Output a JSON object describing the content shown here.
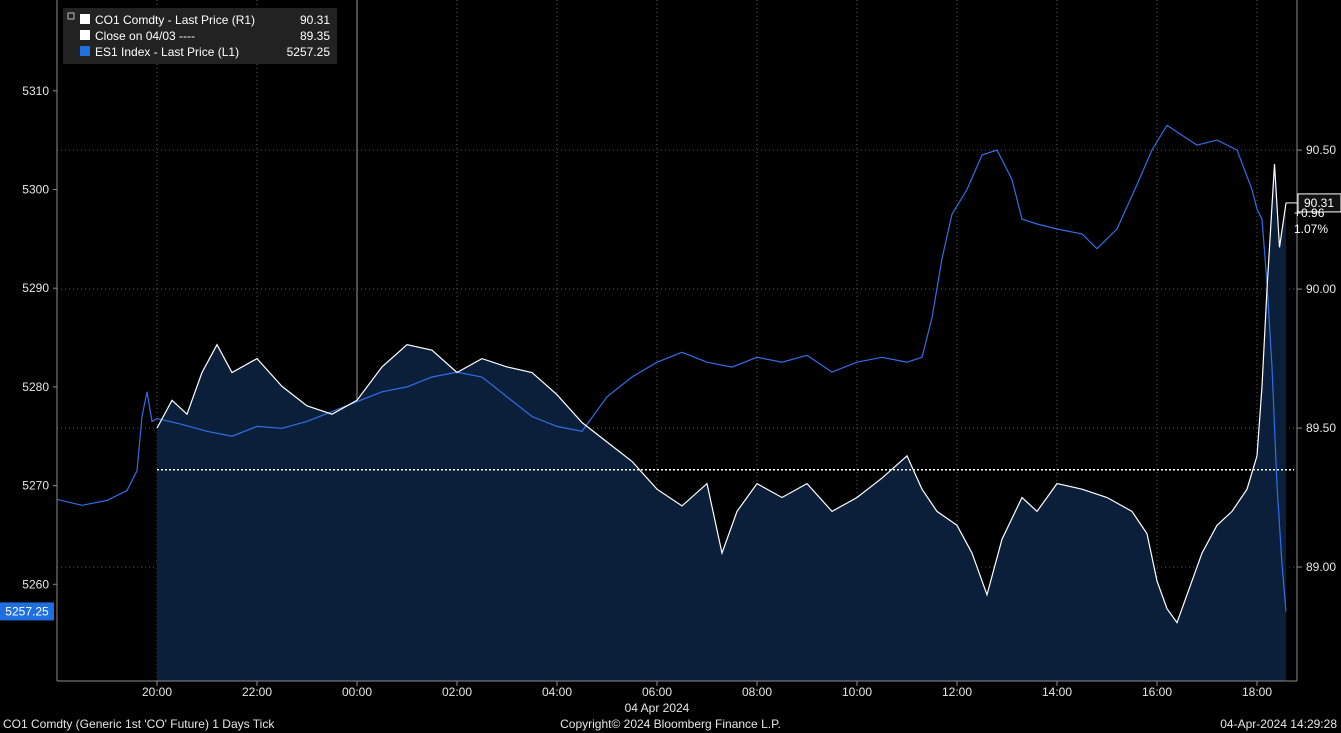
{
  "colors": {
    "background": "#000000",
    "area_fill": "#0b1f3a",
    "brent_line": "#ffffff",
    "es_line": "#2f6ee8",
    "es_badge": "#1f6fe0",
    "close_line": "#ffffff",
    "grid": "#5a5a5a",
    "axis": "#8c8c8c"
  },
  "legend": [
    {
      "icon": "white-square-icon",
      "label": "CO1 Comdty - Last Price (R1)",
      "value": "90.31",
      "color": "#ffffff"
    },
    {
      "icon": "white-square-icon",
      "label": "Close on 04/03 ----",
      "value": "89.35",
      "color": "#ffffff"
    },
    {
      "icon": "blue-square-icon",
      "label": "ES1 Index - Last Price (L1)",
      "value": "5257.25",
      "color": "#1f6fe0"
    }
  ],
  "annotation": {
    "change": "+0.96",
    "pct": "1.07%"
  },
  "right_badge": "90.31",
  "left_badge": "5257.25",
  "footer": {
    "left": "CO1 Comdty (Generic 1st 'CO' Future) 1 Days  Tick",
    "center": "Copyright© 2024 Bloomberg Finance L.P.",
    "right": "04-Apr-2024 14:29:28"
  },
  "chart_data": {
    "type": "line",
    "date_label": "04 Apr 2024",
    "grid": true,
    "legend_position": "top-left",
    "x_ticks": [
      "20:00",
      "22:00",
      "00:00",
      "02:00",
      "04:00",
      "06:00",
      "08:00",
      "10:00",
      "12:00",
      "14:00",
      "16:00",
      "18:00"
    ],
    "x_unit": "hours since 20:00 (03 Apr)",
    "x_range": [
      -2.0,
      22.8
    ],
    "y_left": {
      "ticks": [
        "5310",
        "5300",
        "5290",
        "5280",
        "5270",
        "5260"
      ],
      "range": [
        5250.2,
        5319.2
      ]
    },
    "y_right": {
      "ticks": [
        "90.50",
        "90.00",
        "89.50",
        "89.00"
      ],
      "range": [
        88.59,
        91.04
      ]
    },
    "close_ref": {
      "name": "Close on 04/03",
      "value": 89.35,
      "axis": "right"
    },
    "series": [
      {
        "name": "ES1 Index - Last Price (L1)",
        "axis": "left",
        "points": [
          [
            -2.0,
            5268.6
          ],
          [
            -1.5,
            5268.0
          ],
          [
            -1.0,
            5268.5
          ],
          [
            -0.6,
            5269.5
          ],
          [
            -0.4,
            5271.5
          ],
          [
            -0.3,
            5277.0
          ],
          [
            -0.2,
            5279.5
          ],
          [
            -0.1,
            5276.5
          ],
          [
            0.0,
            5276.8
          ],
          [
            0.5,
            5276.2
          ],
          [
            1.0,
            5275.5
          ],
          [
            1.5,
            5275.0
          ],
          [
            2.0,
            5276.0
          ],
          [
            2.5,
            5275.8
          ],
          [
            3.0,
            5276.5
          ],
          [
            3.5,
            5277.5
          ],
          [
            4.0,
            5278.5
          ],
          [
            4.5,
            5279.5
          ],
          [
            5.0,
            5280.0
          ],
          [
            5.5,
            5281.0
          ],
          [
            6.0,
            5281.5
          ],
          [
            6.5,
            5281.0
          ],
          [
            7.0,
            5279.0
          ],
          [
            7.5,
            5277.0
          ],
          [
            8.0,
            5276.0
          ],
          [
            8.5,
            5275.5
          ],
          [
            9.0,
            5279.0
          ],
          [
            9.5,
            5281.0
          ],
          [
            10.0,
            5282.5
          ],
          [
            10.5,
            5283.5
          ],
          [
            11.0,
            5282.5
          ],
          [
            11.5,
            5282.0
          ],
          [
            12.0,
            5283.0
          ],
          [
            12.5,
            5282.5
          ],
          [
            13.0,
            5283.2
          ],
          [
            13.5,
            5281.5
          ],
          [
            14.0,
            5282.5
          ],
          [
            14.5,
            5283.0
          ],
          [
            15.0,
            5282.5
          ],
          [
            15.3,
            5283.0
          ],
          [
            15.5,
            5287.0
          ],
          [
            15.7,
            5293.0
          ],
          [
            15.9,
            5297.5
          ],
          [
            16.2,
            5300.0
          ],
          [
            16.5,
            5303.5
          ],
          [
            16.8,
            5304.0
          ],
          [
            17.1,
            5301.0
          ],
          [
            17.3,
            5297.0
          ],
          [
            17.6,
            5296.5
          ],
          [
            18.0,
            5296.0
          ],
          [
            18.5,
            5295.5
          ],
          [
            18.8,
            5294.0
          ],
          [
            19.2,
            5296.0
          ],
          [
            19.6,
            5300.5
          ],
          [
            19.9,
            5304.0
          ],
          [
            20.2,
            5306.5
          ],
          [
            20.5,
            5305.5
          ],
          [
            20.8,
            5304.5
          ],
          [
            21.2,
            5305.0
          ],
          [
            21.6,
            5304.0
          ],
          [
            21.9,
            5300.0
          ],
          [
            22.0,
            5298.0
          ],
          [
            22.1,
            5297.0
          ],
          [
            22.2,
            5290.5
          ],
          [
            22.3,
            5282.0
          ],
          [
            22.4,
            5270.0
          ],
          [
            22.5,
            5262.0
          ],
          [
            22.58,
            5257.25
          ]
        ]
      },
      {
        "name": "CO1 Comdty - Last Price (R1)",
        "axis": "right",
        "points": [
          [
            0.0,
            89.5
          ],
          [
            0.3,
            89.6
          ],
          [
            0.6,
            89.55
          ],
          [
            0.9,
            89.7
          ],
          [
            1.2,
            89.8
          ],
          [
            1.5,
            89.7
          ],
          [
            2.0,
            89.75
          ],
          [
            2.5,
            89.65
          ],
          [
            3.0,
            89.58
          ],
          [
            3.5,
            89.55
          ],
          [
            4.0,
            89.6
          ],
          [
            4.5,
            89.72
          ],
          [
            5.0,
            89.8
          ],
          [
            5.5,
            89.78
          ],
          [
            6.0,
            89.7
          ],
          [
            6.5,
            89.75
          ],
          [
            7.0,
            89.72
          ],
          [
            7.5,
            89.7
          ],
          [
            8.0,
            89.62
          ],
          [
            8.5,
            89.52
          ],
          [
            9.0,
            89.45
          ],
          [
            9.5,
            89.38
          ],
          [
            10.0,
            89.28
          ],
          [
            10.5,
            89.22
          ],
          [
            11.0,
            89.3
          ],
          [
            11.3,
            89.05
          ],
          [
            11.6,
            89.2
          ],
          [
            12.0,
            89.3
          ],
          [
            12.5,
            89.25
          ],
          [
            13.0,
            89.3
          ],
          [
            13.5,
            89.2
          ],
          [
            14.0,
            89.25
          ],
          [
            14.5,
            89.32
          ],
          [
            15.0,
            89.4
          ],
          [
            15.3,
            89.28
          ],
          [
            15.6,
            89.2
          ],
          [
            16.0,
            89.15
          ],
          [
            16.3,
            89.05
          ],
          [
            16.6,
            88.9
          ],
          [
            16.9,
            89.1
          ],
          [
            17.3,
            89.25
          ],
          [
            17.6,
            89.2
          ],
          [
            18.0,
            89.3
          ],
          [
            18.5,
            89.28
          ],
          [
            19.0,
            89.25
          ],
          [
            19.5,
            89.2
          ],
          [
            19.8,
            89.12
          ],
          [
            20.0,
            88.95
          ],
          [
            20.2,
            88.85
          ],
          [
            20.4,
            88.8
          ],
          [
            20.6,
            88.9
          ],
          [
            20.9,
            89.05
          ],
          [
            21.2,
            89.15
          ],
          [
            21.5,
            89.2
          ],
          [
            21.8,
            89.28
          ],
          [
            22.0,
            89.4
          ],
          [
            22.1,
            89.65
          ],
          [
            22.2,
            90.0
          ],
          [
            22.3,
            90.3
          ],
          [
            22.35,
            90.45
          ],
          [
            22.45,
            90.15
          ],
          [
            22.58,
            90.31
          ]
        ]
      }
    ],
    "last": {
      "brent": 90.31,
      "es": 5257.25
    }
  }
}
